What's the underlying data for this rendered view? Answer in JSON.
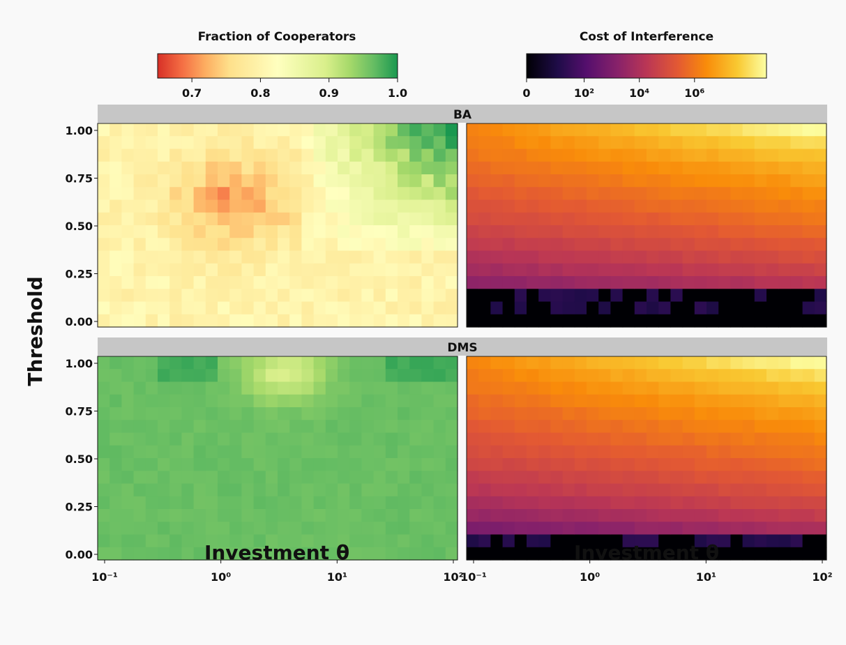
{
  "chart_data": {
    "type": "heatmap",
    "x_label": "Investment θ",
    "y_label": "Threshold",
    "x_scale": "log",
    "x_range": [
      0.1,
      100
    ],
    "y_range": [
      0.0,
      1.0
    ],
    "x_ticks": [
      "10⁻¹",
      "10⁰",
      "10¹",
      "10²"
    ],
    "y_ticks": [
      "0.00",
      "0.25",
      "0.50",
      "0.75",
      "1.00"
    ],
    "grid": {
      "cols": 30,
      "rows": 16
    },
    "colorbars": [
      {
        "title": "Fraction of Cooperators",
        "colormap": "RdYlGn",
        "range": [
          0.65,
          1.0
        ],
        "ticks": [
          "0.7",
          "0.8",
          "0.9",
          "1.0"
        ]
      },
      {
        "title": "Cost of Interference",
        "colormap": "inferno",
        "scale": "symlog",
        "ticks": [
          "0",
          "10²",
          "10⁴",
          "10⁶"
        ]
      }
    ],
    "rows": [
      {
        "label": "BA",
        "cooperators_pattern": "mostly 0.78–0.82; dip to ~0.70 around θ 0.6–5, threshold 0.45–0.80; rises to ~0.95–1.0 at high θ and threshold ≥ 0.9",
        "cost_pattern": "≈0 for threshold < 0.2; increases with threshold and θ; max (~10⁷) at threshold 1.0, θ 100"
      },
      {
        "label": "DMS",
        "cooperators_pattern": "≈0.96–0.98 everywhere; lighter (~0.90) patch near θ 4–15, threshold 0.8–1.0",
        "cost_pattern": "≈0 for threshold < 0.15; increases with threshold and θ; max (~10⁷) at threshold 1.0, θ 100"
      }
    ]
  }
}
